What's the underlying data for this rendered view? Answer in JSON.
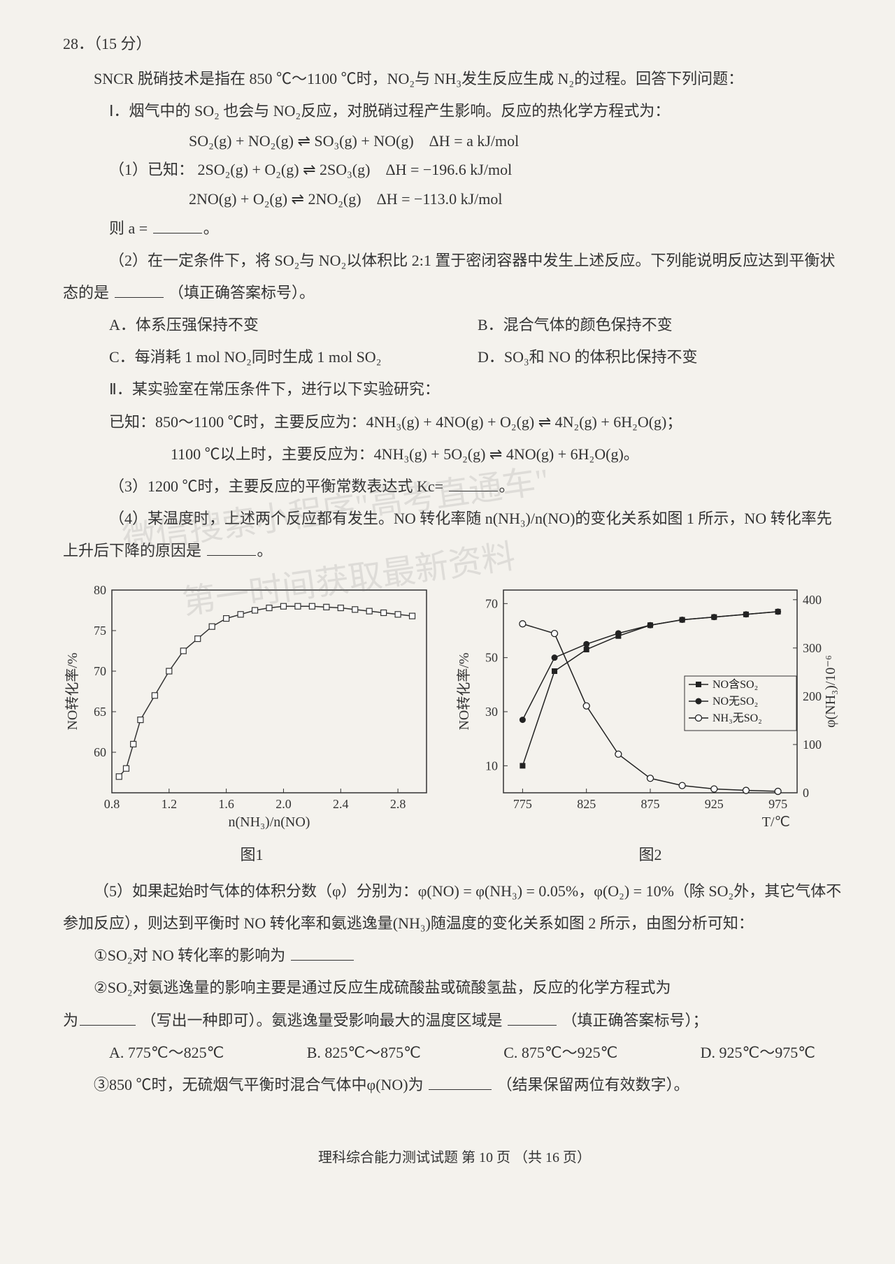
{
  "question": {
    "number": "28．（15 分）",
    "intro": "SNCR 脱硝技术是指在 850 ℃～1100 ℃时，NO₂与 NH₃发生反应生成 N₂的过程。回答下列问题：",
    "part1_title": "Ⅰ．烟气中的 SO₂ 也会与 NO₂反应，对脱硝过程产生影响。反应的热化学方程式为：",
    "eq_main": "SO₂(g) + NO₂(g) ⇌ SO₃(g) + NO(g)　ΔH = a kJ/mol",
    "sub1_label": "（1）已知：",
    "eq_known1": "2SO₂(g) + O₂(g) ⇌ 2SO₃(g)　ΔH = −196.6 kJ/mol",
    "eq_known2": "2NO(g) + O₂(g) ⇌ 2NO₂(g)　ΔH = −113.0 kJ/mol",
    "then_a": "则 a =",
    "sub2": "（2）在一定条件下，将 SO₂与 NO₂以体积比 2:1 置于密闭容器中发生上述反应。下列能说明反应达到平衡状态的是",
    "sub2_tail": "（填正确答案标号）。",
    "opt2": {
      "A": "A．体系压强保持不变",
      "B": "B．混合气体的颜色保持不变",
      "C": "C．每消耗 1 mol NO₂同时生成 1 mol SO₂",
      "D": "D．SO₃和 NO 的体积比保持不变"
    },
    "part2_title": "Ⅱ．某实验室在常压条件下，进行以下实验研究：",
    "known_line1": "已知：850～1100 ℃时，主要反应为：4NH₃(g) + 4NO(g) + O₂(g) ⇌ 4N₂(g) + 6H₂O(g)；",
    "known_line2": "1100 ℃以上时，主要反应为：4NH₃(g) + 5O₂(g) ⇌ 4NO(g) + 6H₂O(g)。",
    "sub3": "（3）1200 ℃时，主要反应的平衡常数表达式 Kc=",
    "sub4": "（4）某温度时，上述两个反应都有发生。NO 转化率随 n(NH₃)/n(NO)的变化关系如图 1 所示，NO 转化率先上升后下降的原因是",
    "sub5_intro": "（5）如果起始时气体的体积分数（φ）分别为：φ(NO) = φ(NH₃) = 0.05%，φ(O₂) = 10%（除 SO₂外，其它气体不参加反应），则达到平衡时 NO 转化率和氨逃逸量(NH₃)随温度的变化关系如图 2 所示，由图分析可知：",
    "sub5_1": "①SO₂对 NO 转化率的影响为",
    "sub5_2a": "②SO₂对氨逃逸量的影响主要是通过反应生成硫酸盐或硫酸氢盐，反应的化学方程式为",
    "sub5_2b": "（写出一种即可）。氨逃逸量受影响最大的温度区域是",
    "sub5_2c": "（填正确答案标号）；",
    "opt5": {
      "A": "A. 775℃～825℃",
      "B": "B. 825℃～875℃",
      "C": "C. 875℃～925℃",
      "D": "D. 925℃～975℃"
    },
    "sub5_3": "③850 ℃时，无硫烟气平衡时混合气体中φ(NO)为",
    "sub5_3_tail": "（结果保留两位有效数字）。"
  },
  "chart1": {
    "type": "line-scatter",
    "caption": "图1",
    "xlabel": "n(NH₃)/n(NO)",
    "ylabel": "NO转化率/%",
    "xlim": [
      0.8,
      3.0
    ],
    "xtick_step": 0.4,
    "xticks": [
      "0.8",
      "1.2",
      "1.6",
      "2.0",
      "2.4",
      "2.8"
    ],
    "ylim": [
      55,
      80
    ],
    "yticks": [
      "60",
      "65",
      "70",
      "75",
      "80"
    ],
    "marker_color": "#ffffff",
    "marker_stroke": "#333333",
    "line_color": "#333333",
    "background": "#f4f2ed",
    "data_x": [
      0.85,
      0.9,
      0.95,
      1.0,
      1.1,
      1.2,
      1.3,
      1.4,
      1.5,
      1.6,
      1.7,
      1.8,
      1.9,
      2.0,
      2.1,
      2.2,
      2.3,
      2.4,
      2.5,
      2.6,
      2.7,
      2.8,
      2.9
    ],
    "data_y": [
      57,
      58,
      61,
      64,
      67,
      70,
      72.5,
      74,
      75.5,
      76.5,
      77,
      77.5,
      77.8,
      78,
      78,
      78,
      77.9,
      77.8,
      77.6,
      77.4,
      77.2,
      77,
      76.8
    ]
  },
  "chart2": {
    "type": "dual-axis-line",
    "caption": "图2",
    "xlabel": "T/℃",
    "ylabel_left": "NO转化率/%",
    "ylabel_right": "φ(NH₃)/10⁻⁶",
    "xlim": [
      760,
      990
    ],
    "xticks": [
      "775",
      "825",
      "875",
      "925",
      "975"
    ],
    "ylim_left": [
      0,
      75
    ],
    "yticks_left": [
      "10",
      "30",
      "50",
      "70"
    ],
    "ylim_right": [
      0,
      420
    ],
    "yticks_right": [
      "0",
      "100",
      "200",
      "300",
      "400"
    ],
    "background": "#f4f2ed",
    "series": [
      {
        "name": "NO含SO₂",
        "marker": "square-filled",
        "color": "#222222",
        "x": [
          775,
          800,
          825,
          850,
          875,
          900,
          925,
          950,
          975
        ],
        "y": [
          10,
          45,
          53,
          58,
          62,
          64,
          65,
          66,
          67
        ],
        "axis": "left"
      },
      {
        "name": "NO无SO₂",
        "marker": "circle-filled",
        "color": "#222222",
        "x": [
          775,
          800,
          825,
          850,
          875,
          900,
          925,
          950,
          975
        ],
        "y": [
          27,
          50,
          55,
          59,
          62,
          64,
          65,
          66,
          67
        ],
        "axis": "left"
      },
      {
        "name": "NH₃无SO₂",
        "marker": "circle-open",
        "color": "#222222",
        "x": [
          775,
          800,
          825,
          850,
          875,
          900,
          925,
          950,
          975
        ],
        "y": [
          350,
          330,
          180,
          80,
          30,
          15,
          8,
          5,
          3
        ],
        "axis": "right"
      }
    ],
    "legend_pos": "right-middle"
  },
  "footer": "理科综合能力测试试题 第 10 页 （共 16 页）",
  "watermark": "微信搜索小程序\"高考直通车\"\n      第一时间获取最新资料"
}
